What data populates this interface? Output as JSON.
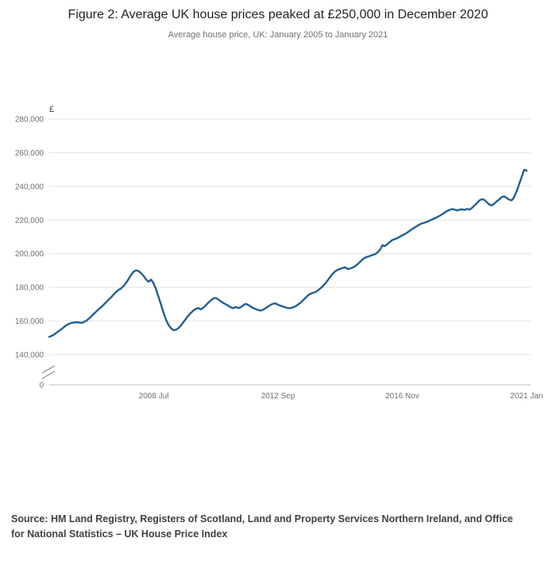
{
  "header": {
    "title": "Figure 2: Average UK house prices peaked at £250,000 in December 2020",
    "subtitle": "Average house price, UK: January 2005 to January 2021"
  },
  "chart_data": {
    "type": "line",
    "title": "Average house price, UK: January 2005 to January 2021",
    "unit_label": "£",
    "x_start": "2005 Jan",
    "x_end": "2021 Jan",
    "x_tick_labels": [
      "2008 Jul",
      "2012 Sep",
      "2016 Nov",
      "2021 Jan"
    ],
    "x_tick_month_indices": [
      42,
      92,
      142,
      192
    ],
    "y_ticks": [
      0,
      140000,
      160000,
      180000,
      200000,
      220000,
      240000,
      260000,
      280000
    ],
    "y_axis_break": true,
    "ylim_main": [
      140000,
      280000
    ],
    "line_color": "#206095",
    "grid_color": "#e2e2e2",
    "axis_color": "#c0c0c0",
    "tick_label_color": "#707071",
    "values": [
      150600,
      151200,
      152000,
      153100,
      154200,
      155300,
      156500,
      157600,
      158400,
      158900,
      159100,
      159300,
      159100,
      158900,
      159400,
      160300,
      161500,
      162900,
      164300,
      165800,
      167100,
      168400,
      169900,
      171400,
      172800,
      174300,
      175900,
      177400,
      178600,
      179500,
      180900,
      182800,
      185200,
      187600,
      189400,
      190100,
      189600,
      188300,
      186700,
      184600,
      183400,
      184600,
      182300,
      178600,
      174200,
      169500,
      164800,
      160700,
      157600,
      155600,
      154500,
      154900,
      155800,
      157400,
      159400,
      161400,
      163300,
      164900,
      166300,
      167300,
      167700,
      166900,
      167900,
      169400,
      170900,
      172300,
      173400,
      173700,
      172800,
      171700,
      170700,
      170000,
      169100,
      168100,
      167600,
      168400,
      167700,
      168200,
      169300,
      170200,
      169600,
      168600,
      167700,
      167100,
      166600,
      166200,
      166700,
      167600,
      168600,
      169600,
      170200,
      170500,
      169700,
      169100,
      168600,
      168100,
      167700,
      167600,
      168100,
      168700,
      169700,
      170800,
      172200,
      173700,
      175100,
      176100,
      176700,
      177200,
      178200,
      179300,
      180700,
      182300,
      184200,
      186200,
      188100,
      189500,
      190400,
      191000,
      191500,
      191900,
      190900,
      191200,
      191700,
      192600,
      193700,
      195100,
      196600,
      197600,
      198200,
      198700,
      199200,
      199700,
      200700,
      202200,
      205000,
      204600,
      205600,
      207000,
      208100,
      208700,
      209200,
      210100,
      211000,
      211600,
      212600,
      213600,
      214600,
      215600,
      216500,
      217400,
      218000,
      218500,
      219000,
      219600,
      220400,
      221000,
      221700,
      222500,
      223400,
      224400,
      225300,
      226000,
      226500,
      226200,
      225700,
      226100,
      226400,
      226000,
      226600,
      226200,
      227100,
      228600,
      230000,
      231600,
      232400,
      232000,
      230600,
      229200,
      228700,
      229700,
      231100,
      232200,
      233600,
      234100,
      233100,
      232100,
      231700,
      233600,
      237200,
      241300,
      245400,
      249900,
      249300
    ]
  },
  "source": {
    "text": "Source: HM Land Registry, Registers of Scotland, Land and Property Services Northern Ireland, and Office for National Statistics – UK House Price Index"
  }
}
